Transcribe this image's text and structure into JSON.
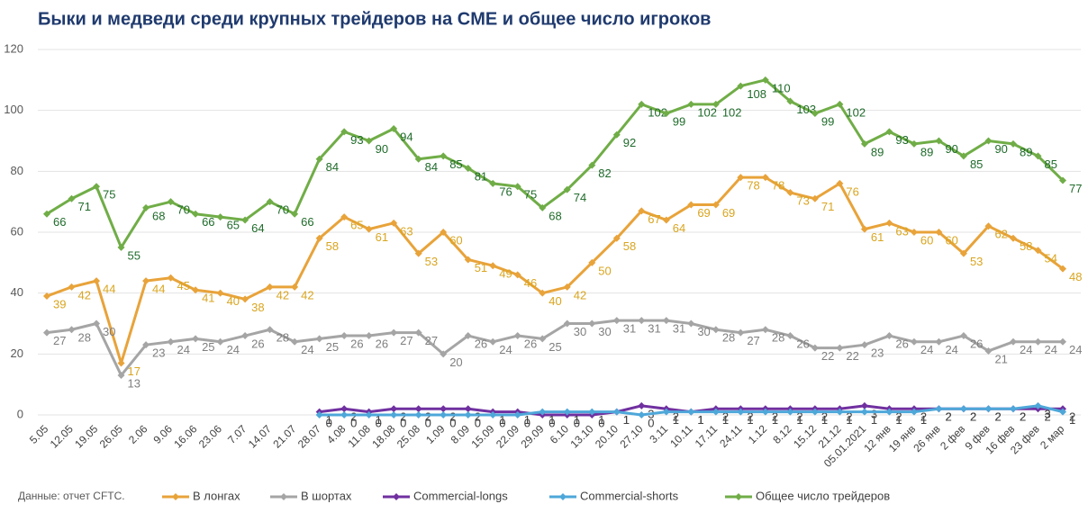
{
  "chart_data": {
    "type": "line",
    "title": "Быки и медведи среди крупных трейдеров на CME и общее число игроков",
    "note": "Данные: отчет CFTC.",
    "categories": [
      "5.05",
      "12.05",
      "19.05",
      "26.05",
      "2.06",
      "9.06",
      "16.06",
      "23.06",
      "7.07",
      "14.07",
      "21.07",
      "28.07",
      "4.08",
      "11.08",
      "18.08",
      "25.08",
      "1.09",
      "8.09",
      "15.09",
      "22.09",
      "29.09",
      "6.10",
      "13.10",
      "20.10",
      "27.10",
      "3.11",
      "10.11",
      "17.11",
      "24.11",
      "1.12",
      "8.12",
      "15.12",
      "21.12",
      "05.01.2021",
      "12 янв",
      "19 янв",
      "26 янв",
      "2 фев",
      "9 фев",
      "16 фев",
      "23 фев",
      "2 мар"
    ],
    "series": [
      {
        "name": "В лонгах",
        "color": "#e8a33a",
        "label_color": "#d9a520",
        "values": [
          39,
          42,
          44,
          17,
          44,
          45,
          41,
          40,
          38,
          42,
          42,
          58,
          65,
          61,
          63,
          53,
          60,
          51,
          49,
          46,
          40,
          42,
          50,
          58,
          67,
          64,
          69,
          69,
          78,
          78,
          73,
          71,
          76,
          61,
          63,
          60,
          60,
          53,
          62,
          58,
          54,
          48
        ]
      },
      {
        "name": "В шортах",
        "color": "#a5a5a5",
        "label_color": "#7f7f7f",
        "values": [
          27,
          28,
          30,
          13,
          23,
          24,
          25,
          24,
          26,
          28,
          24,
          25,
          26,
          26,
          27,
          27,
          20,
          26,
          24,
          26,
          25,
          30,
          30,
          31,
          31,
          31,
          30,
          28,
          27,
          28,
          26,
          22,
          22,
          23,
          26,
          24,
          24,
          26,
          21,
          24,
          24,
          24
        ]
      },
      {
        "name": "Commercial-longs",
        "color": "#7030a0",
        "label_color": "#404040",
        "values": [
          null,
          null,
          null,
          null,
          null,
          null,
          null,
          null,
          null,
          null,
          null,
          1,
          2,
          1,
          2,
          2,
          2,
          2,
          1,
          1,
          0,
          0,
          0,
          1,
          3,
          2,
          1,
          2,
          2,
          2,
          2,
          2,
          2,
          3,
          2,
          2,
          2,
          2,
          2,
          2,
          2,
          2
        ]
      },
      {
        "name": "Commercial-shorts",
        "color": "#4ea7d9",
        "label_color": "#404040",
        "values": [
          null,
          null,
          null,
          null,
          null,
          null,
          null,
          null,
          null,
          null,
          null,
          0,
          0,
          0,
          0,
          0,
          0,
          0,
          0,
          0,
          1,
          1,
          1,
          1,
          0,
          1,
          1,
          1,
          1,
          1,
          1,
          1,
          1,
          1,
          1,
          1,
          2,
          2,
          2,
          2,
          3,
          1
        ]
      },
      {
        "name": "Общее число трейдеров",
        "color": "#70ad47",
        "label_color": "#1f6b2a",
        "values": [
          66,
          71,
          75,
          55,
          68,
          70,
          66,
          65,
          64,
          70,
          66,
          84,
          93,
          90,
          94,
          84,
          85,
          81,
          76,
          75,
          68,
          74,
          82,
          92,
          102,
          99,
          102,
          102,
          108,
          110,
          103,
          99,
          102,
          89,
          93,
          89,
          90,
          85,
          90,
          89,
          85,
          77
        ]
      }
    ],
    "ylim": [
      0,
      120
    ],
    "yticks": [
      0,
      20,
      40,
      60,
      80,
      100,
      120
    ],
    "grid": true
  }
}
